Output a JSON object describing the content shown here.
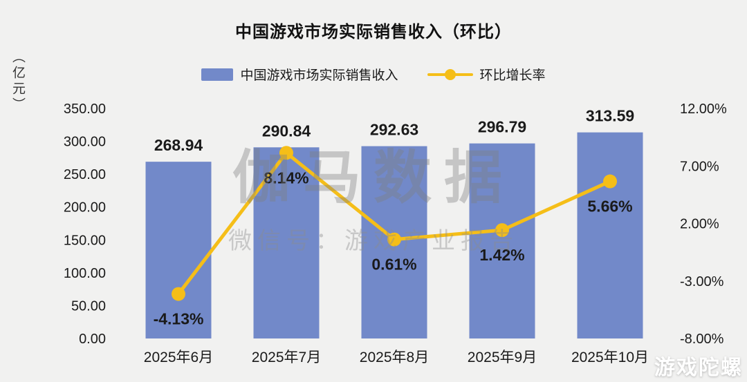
{
  "title": "中国游戏市场实际销售收入（环比）",
  "y_axis_unit": "（亿元）",
  "legend": {
    "bar_label": "中国游戏市场实际销售收入",
    "line_label": "环比增长率"
  },
  "watermark": {
    "line1": "伽马数据",
    "line2": "微信号：游戏产业报告",
    "corner": "游戏陀螺"
  },
  "colors": {
    "bar": "#7289C9",
    "line": "#F5BE18",
    "background": "#F1F1F0",
    "text": "#1A1A1A"
  },
  "chart_data": {
    "type": "bar",
    "subtype": "bar+line combo",
    "title": "中国游戏市场实际销售收入（环比）",
    "categories": [
      "2025年6月",
      "2025年7月",
      "2025年8月",
      "2025年9月",
      "2025年10月"
    ],
    "series": [
      {
        "name": "中国游戏市场实际销售收入",
        "type": "bar",
        "axis": "left",
        "values": [
          268.94,
          290.84,
          292.63,
          296.79,
          313.59
        ],
        "labels": [
          "268.94",
          "290.84",
          "292.63",
          "296.79",
          "313.59"
        ]
      },
      {
        "name": "环比增长率",
        "type": "line",
        "axis": "right",
        "values": [
          -4.13,
          8.14,
          0.61,
          1.42,
          5.66
        ],
        "labels": [
          "-4.13%",
          "8.14%",
          "0.61%",
          "1.42%",
          "5.66%"
        ]
      }
    ],
    "left_axis": {
      "label": "（亿元）",
      "min": 0,
      "max": 350,
      "ticks": [
        "350.00",
        "300.00",
        "250.00",
        "200.00",
        "150.00",
        "100.00",
        "50.00",
        "0.00"
      ]
    },
    "right_axis": {
      "label": "",
      "min": -8,
      "max": 12,
      "ticks": [
        "12.00%",
        "7.00%",
        "2.00%",
        "-3.00%",
        "-8.00%"
      ]
    },
    "grid": false,
    "legend_position": "top"
  }
}
